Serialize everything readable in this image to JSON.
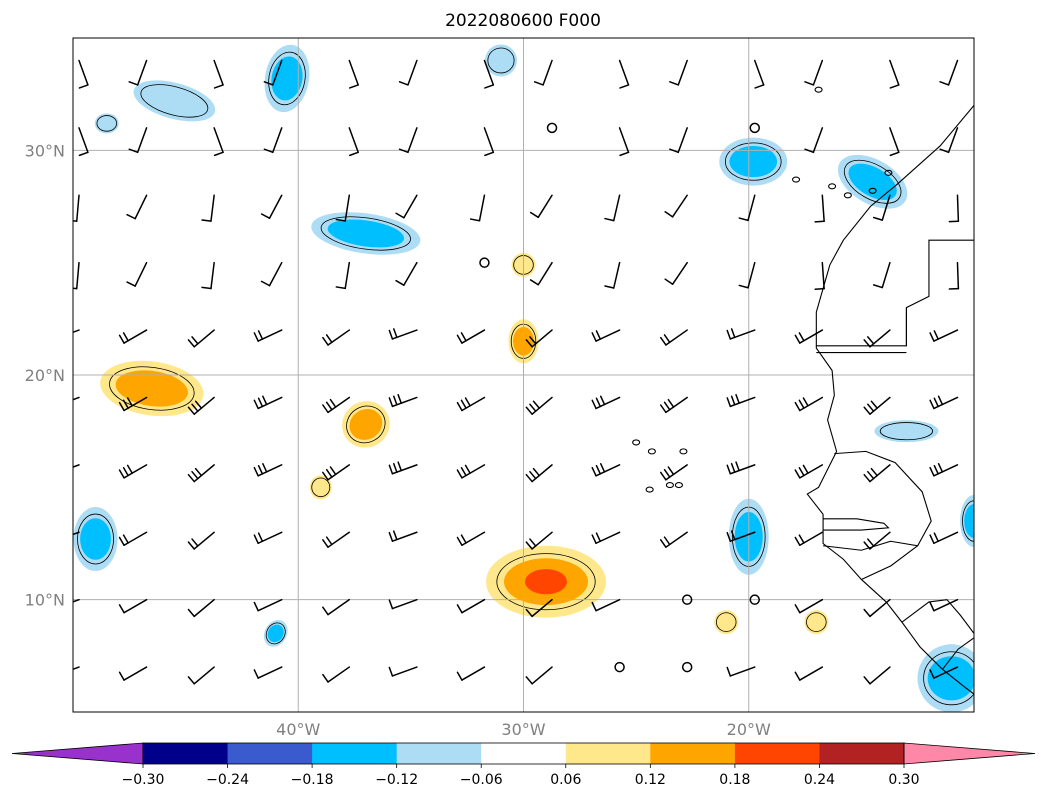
{
  "chart_data": {
    "type": "map",
    "title": "2022080600 F000",
    "projection": "PlateCarree",
    "extent": {
      "lon": [
        -50,
        -10
      ],
      "lat": [
        5,
        35
      ]
    },
    "gridlines": true,
    "x_ticks": [
      {
        "value": -40,
        "label": "40°W"
      },
      {
        "value": -30,
        "label": "30°W"
      },
      {
        "value": -20,
        "label": "20°W"
      }
    ],
    "y_ticks": [
      {
        "value": 10,
        "label": "10°N"
      },
      {
        "value": 20,
        "label": "20°N"
      },
      {
        "value": 30,
        "label": "30°N"
      }
    ],
    "colorbar": {
      "orientation": "horizontal",
      "extend": "both",
      "levels": [
        -0.36,
        -0.3,
        -0.24,
        -0.18,
        -0.12,
        -0.06,
        0.06,
        0.12,
        0.18,
        0.24,
        0.3,
        0.36
      ],
      "colors": [
        "#9932CC",
        "#00008B",
        "#3A5BCD",
        "#00BFFF",
        "#ADDCF5",
        "#FFFFFF",
        "#FFE78C",
        "#FFA500",
        "#FF4500",
        "#B22222",
        "#FF88A8"
      ],
      "ticks": [
        "−0.30",
        "−0.24",
        "−0.18",
        "−0.12",
        "−0.06",
        "0.06",
        "0.12",
        "0.18",
        "0.24",
        "0.30"
      ]
    },
    "contour_features": [
      {
        "lon": -40.5,
        "lat": 33.2,
        "value": -0.15
      },
      {
        "lon": -45.5,
        "lat": 32.2,
        "value": -0.09
      },
      {
        "lon": -48.5,
        "lat": 31.2,
        "value": -0.08
      },
      {
        "lon": -31.0,
        "lat": 34.0,
        "value": -0.09
      },
      {
        "lon": -37.0,
        "lat": 26.3,
        "value": -0.14
      },
      {
        "lon": -19.8,
        "lat": 29.5,
        "value": -0.15
      },
      {
        "lon": -14.5,
        "lat": 28.6,
        "value": -0.14
      },
      {
        "lon": -46.5,
        "lat": 19.4,
        "value": 0.15
      },
      {
        "lon": -37.0,
        "lat": 17.8,
        "value": 0.14
      },
      {
        "lon": -30.0,
        "lat": 21.5,
        "value": 0.13
      },
      {
        "lon": -30.0,
        "lat": 24.9,
        "value": 0.09
      },
      {
        "lon": -39.0,
        "lat": 15.0,
        "value": 0.09
      },
      {
        "lon": -29.0,
        "lat": 10.8,
        "value": 0.19
      },
      {
        "lon": -10.0,
        "lat": 13.5,
        "value": -0.13
      },
      {
        "lon": -49.0,
        "lat": 12.7,
        "value": -0.13
      },
      {
        "lon": -41.0,
        "lat": 8.5,
        "value": -0.14
      },
      {
        "lon": -20.0,
        "lat": 12.8,
        "value": -0.13
      },
      {
        "lon": -11.0,
        "lat": 6.5,
        "value": -0.15
      },
      {
        "lon": -13.0,
        "lat": 17.5,
        "value": -0.08
      },
      {
        "lon": -21.0,
        "lat": 9.0,
        "value": 0.08
      },
      {
        "lon": -17.0,
        "lat": 9.0,
        "value": 0.08
      }
    ]
  }
}
